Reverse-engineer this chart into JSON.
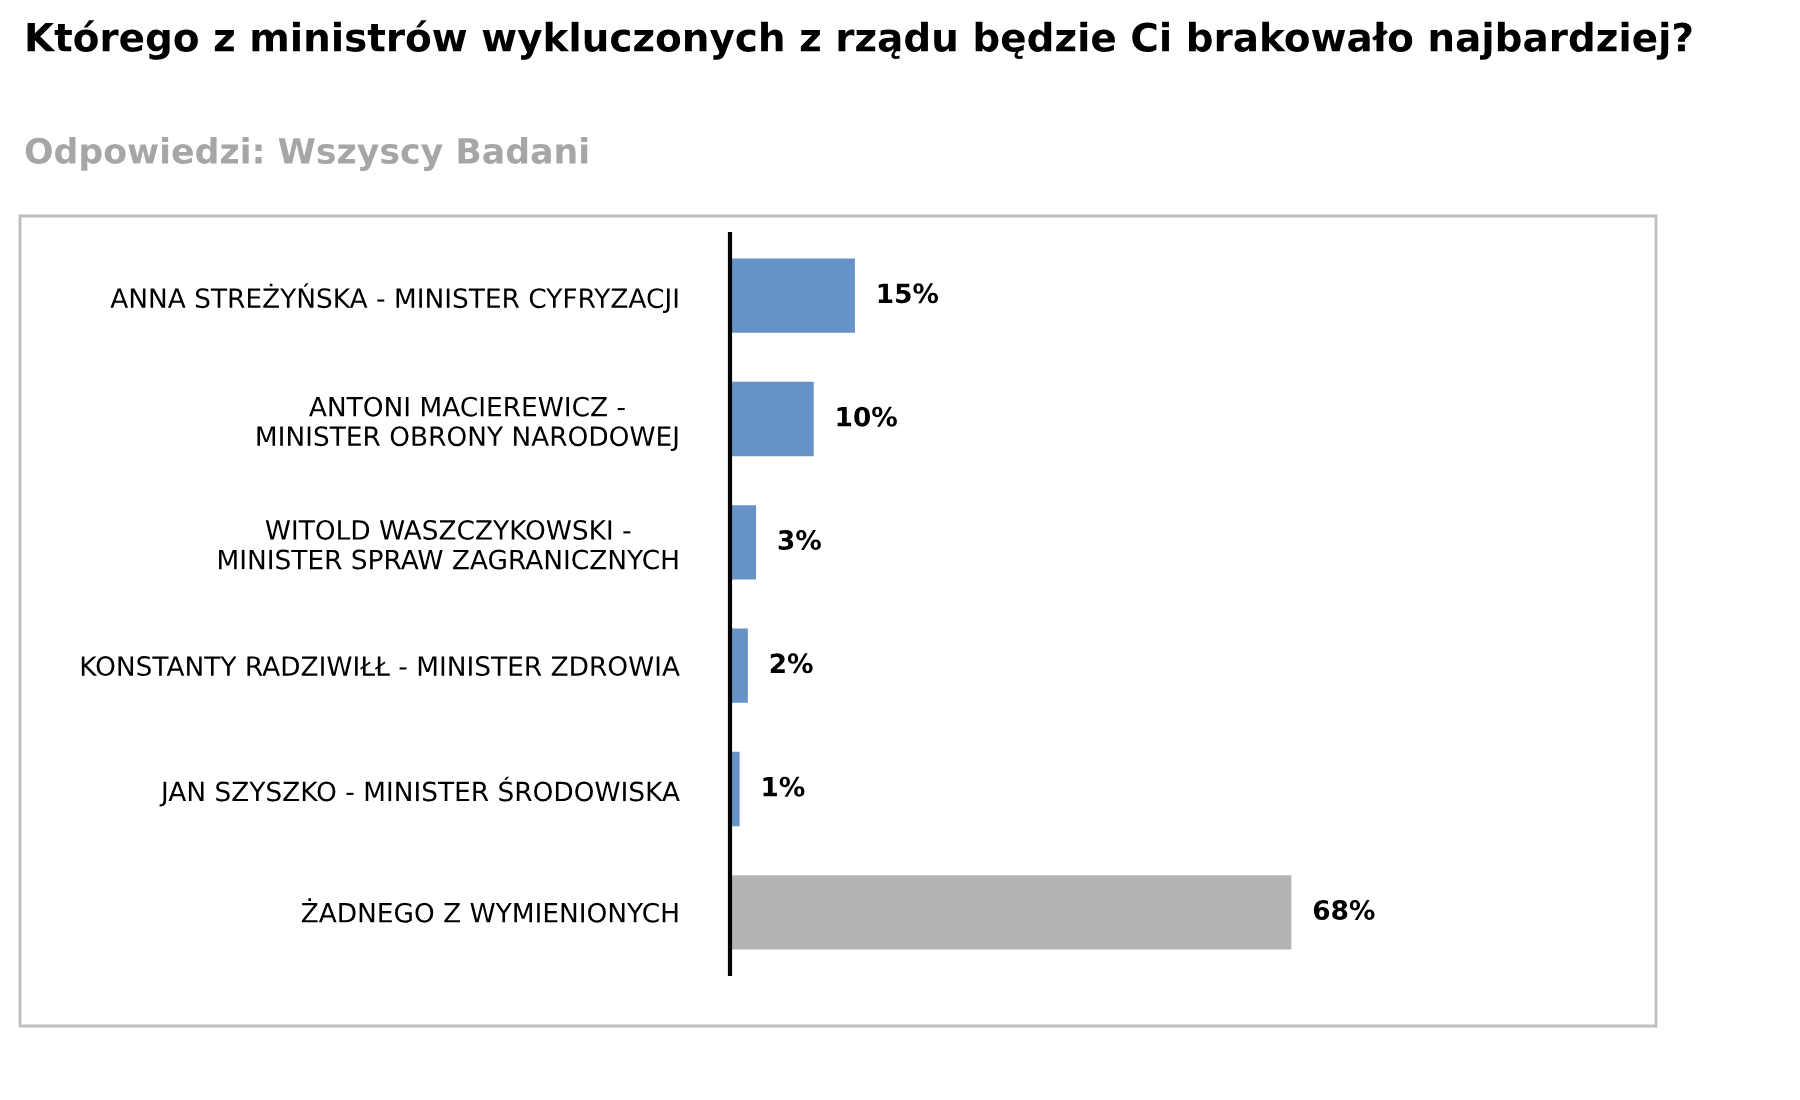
{
  "chart_data": {
    "type": "bar",
    "orientation": "horizontal",
    "title": "Którego z ministrów wykluczonych z rządu będzie Ci brakowało najbardziej?",
    "subtitle": "Odpowiedzi: Wszyscy Badani",
    "categories": [
      "ANNA STREŻYŃSKA - MINISTER CYFRYZACJI",
      "ANTONI MACIEREWICZ -\nMINISTER OBRONY NARODOWEJ",
      "WITOLD WASZCZYKOWSKI -\nMINISTER SPRAW ZAGRANICZNYCH",
      "KONSTANTY RADZIWIŁŁ - MINISTER ZDROWIA",
      "JAN SZYSZKO - MINISTER ŚRODOWISKA",
      "ŻADNEGO Z WYMIENIONYCH"
    ],
    "values": [
      15,
      10,
      3,
      2,
      1,
      68
    ],
    "colors": [
      "#6792c8",
      "#6792c8",
      "#6792c8",
      "#6792c8",
      "#6792c8",
      "#b4b4b4"
    ],
    "value_labels": [
      "15%",
      "10%",
      "3%",
      "2%",
      "1%",
      "68%"
    ],
    "grid": false,
    "legend": false
  }
}
